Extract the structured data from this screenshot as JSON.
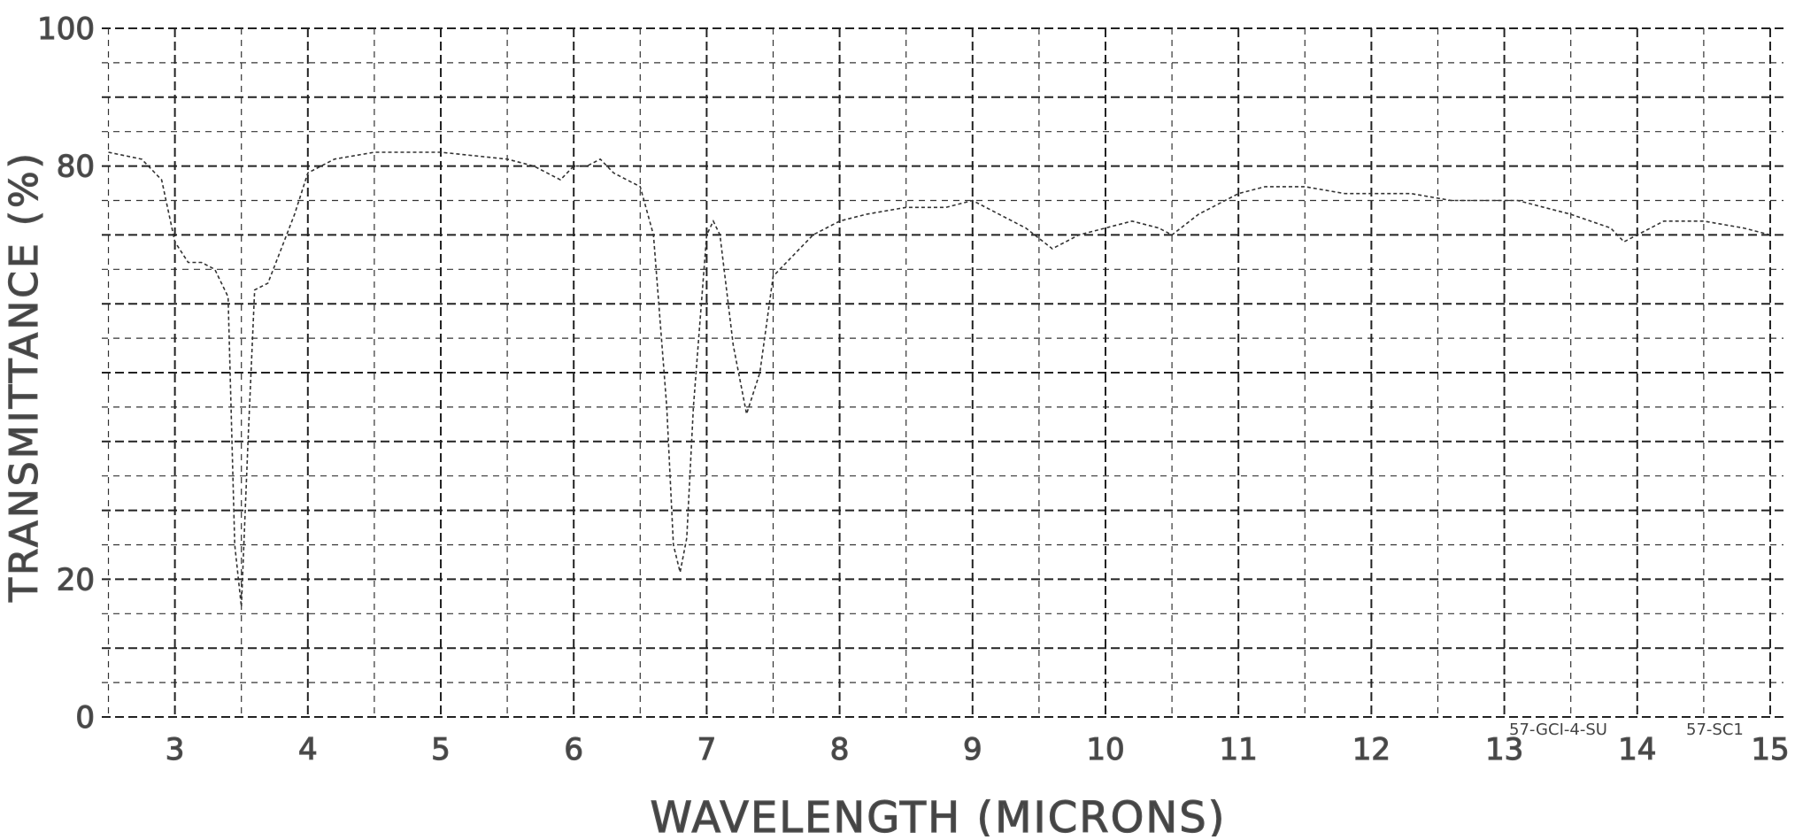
{
  "chart_data": {
    "type": "line",
    "title": "",
    "xlabel": "WAVELENGTH (MICRONS)",
    "ylabel": "TRANSMITTANCE (%)",
    "xlim": [
      2.45,
      15.1
    ],
    "ylim": [
      0,
      100
    ],
    "x_ticks": [
      3,
      4,
      5,
      6,
      7,
      8,
      9,
      10,
      11,
      12,
      13,
      14,
      15
    ],
    "x_tick_labels": [
      "3",
      "4",
      "5",
      "6",
      "7",
      "8",
      "9",
      "10",
      "11",
      "12",
      "13",
      "14",
      "15"
    ],
    "y_ticks": [
      0,
      20,
      40,
      60,
      80,
      100
    ],
    "y_tick_labels": [
      "0",
      "20",
      "",
      "",
      "80",
      "100"
    ],
    "grid": true,
    "annotations": [
      "57-GCI-4-SU",
      "57-SC1"
    ],
    "series": [
      {
        "name": "",
        "x": [
          2.5,
          2.75,
          2.9,
          3.0,
          3.1,
          3.2,
          3.3,
          3.4,
          3.45,
          3.5,
          3.55,
          3.6,
          3.7,
          3.8,
          3.9,
          4.0,
          4.2,
          4.5,
          5.0,
          5.5,
          5.7,
          5.9,
          6.0,
          6.1,
          6.2,
          6.3,
          6.4,
          6.5,
          6.6,
          6.7,
          6.75,
          6.8,
          6.85,
          6.9,
          7.0,
          7.05,
          7.1,
          7.2,
          7.3,
          7.4,
          7.5,
          7.6,
          7.8,
          8.0,
          8.2,
          8.5,
          8.8,
          9.0,
          9.2,
          9.4,
          9.6,
          9.8,
          10.0,
          10.2,
          10.4,
          10.5,
          10.7,
          10.9,
          11.0,
          11.2,
          11.5,
          11.8,
          12.0,
          12.3,
          12.6,
          12.9,
          13.1,
          13.3,
          13.5,
          13.8,
          13.9,
          14.0,
          14.2,
          14.5,
          14.8,
          15.0
        ],
        "y": [
          82,
          81,
          78,
          69,
          66,
          66,
          65,
          61,
          25,
          16,
          40,
          62,
          63,
          68,
          73,
          79,
          81,
          82,
          82,
          81,
          80,
          78,
          80,
          80,
          81,
          79,
          78,
          77,
          70,
          45,
          25,
          21,
          26,
          45,
          70,
          72,
          70,
          54,
          44,
          50,
          64,
          66,
          70,
          72,
          73,
          74,
          74,
          75,
          73,
          71,
          68,
          70,
          71,
          72,
          71,
          70,
          73,
          75,
          76,
          77,
          77,
          76,
          76,
          76,
          75,
          75,
          75,
          74,
          73,
          71,
          69,
          70,
          72,
          72,
          71,
          70
        ]
      }
    ]
  }
}
